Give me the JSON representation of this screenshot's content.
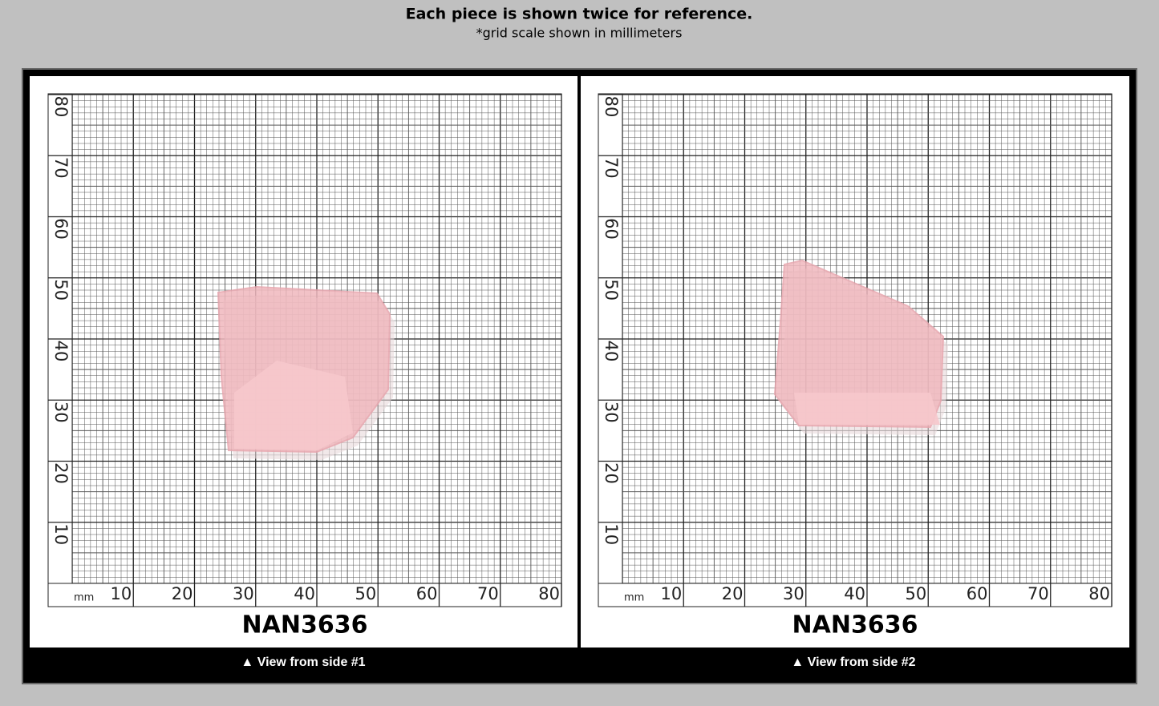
{
  "header": {
    "title": "Each piece is shown twice for reference.",
    "subtitle": "*grid scale shown in millimeters"
  },
  "panels": [
    {
      "unit": "mm",
      "x_labels": [
        "10",
        "20",
        "30",
        "40",
        "50",
        "60",
        "70",
        "80"
      ],
      "y_labels": [
        "10",
        "20",
        "30",
        "40",
        "50",
        "60",
        "70",
        "80"
      ],
      "sku": "NAN3636",
      "caption": "▲ View from side #1"
    },
    {
      "unit": "mm",
      "x_labels": [
        "10",
        "20",
        "30",
        "40",
        "50",
        "60",
        "70",
        "80"
      ],
      "y_labels": [
        "10",
        "20",
        "30",
        "40",
        "50",
        "60",
        "70",
        "80"
      ],
      "sku": "NAN3636",
      "caption": "▲ View from side #2"
    }
  ]
}
